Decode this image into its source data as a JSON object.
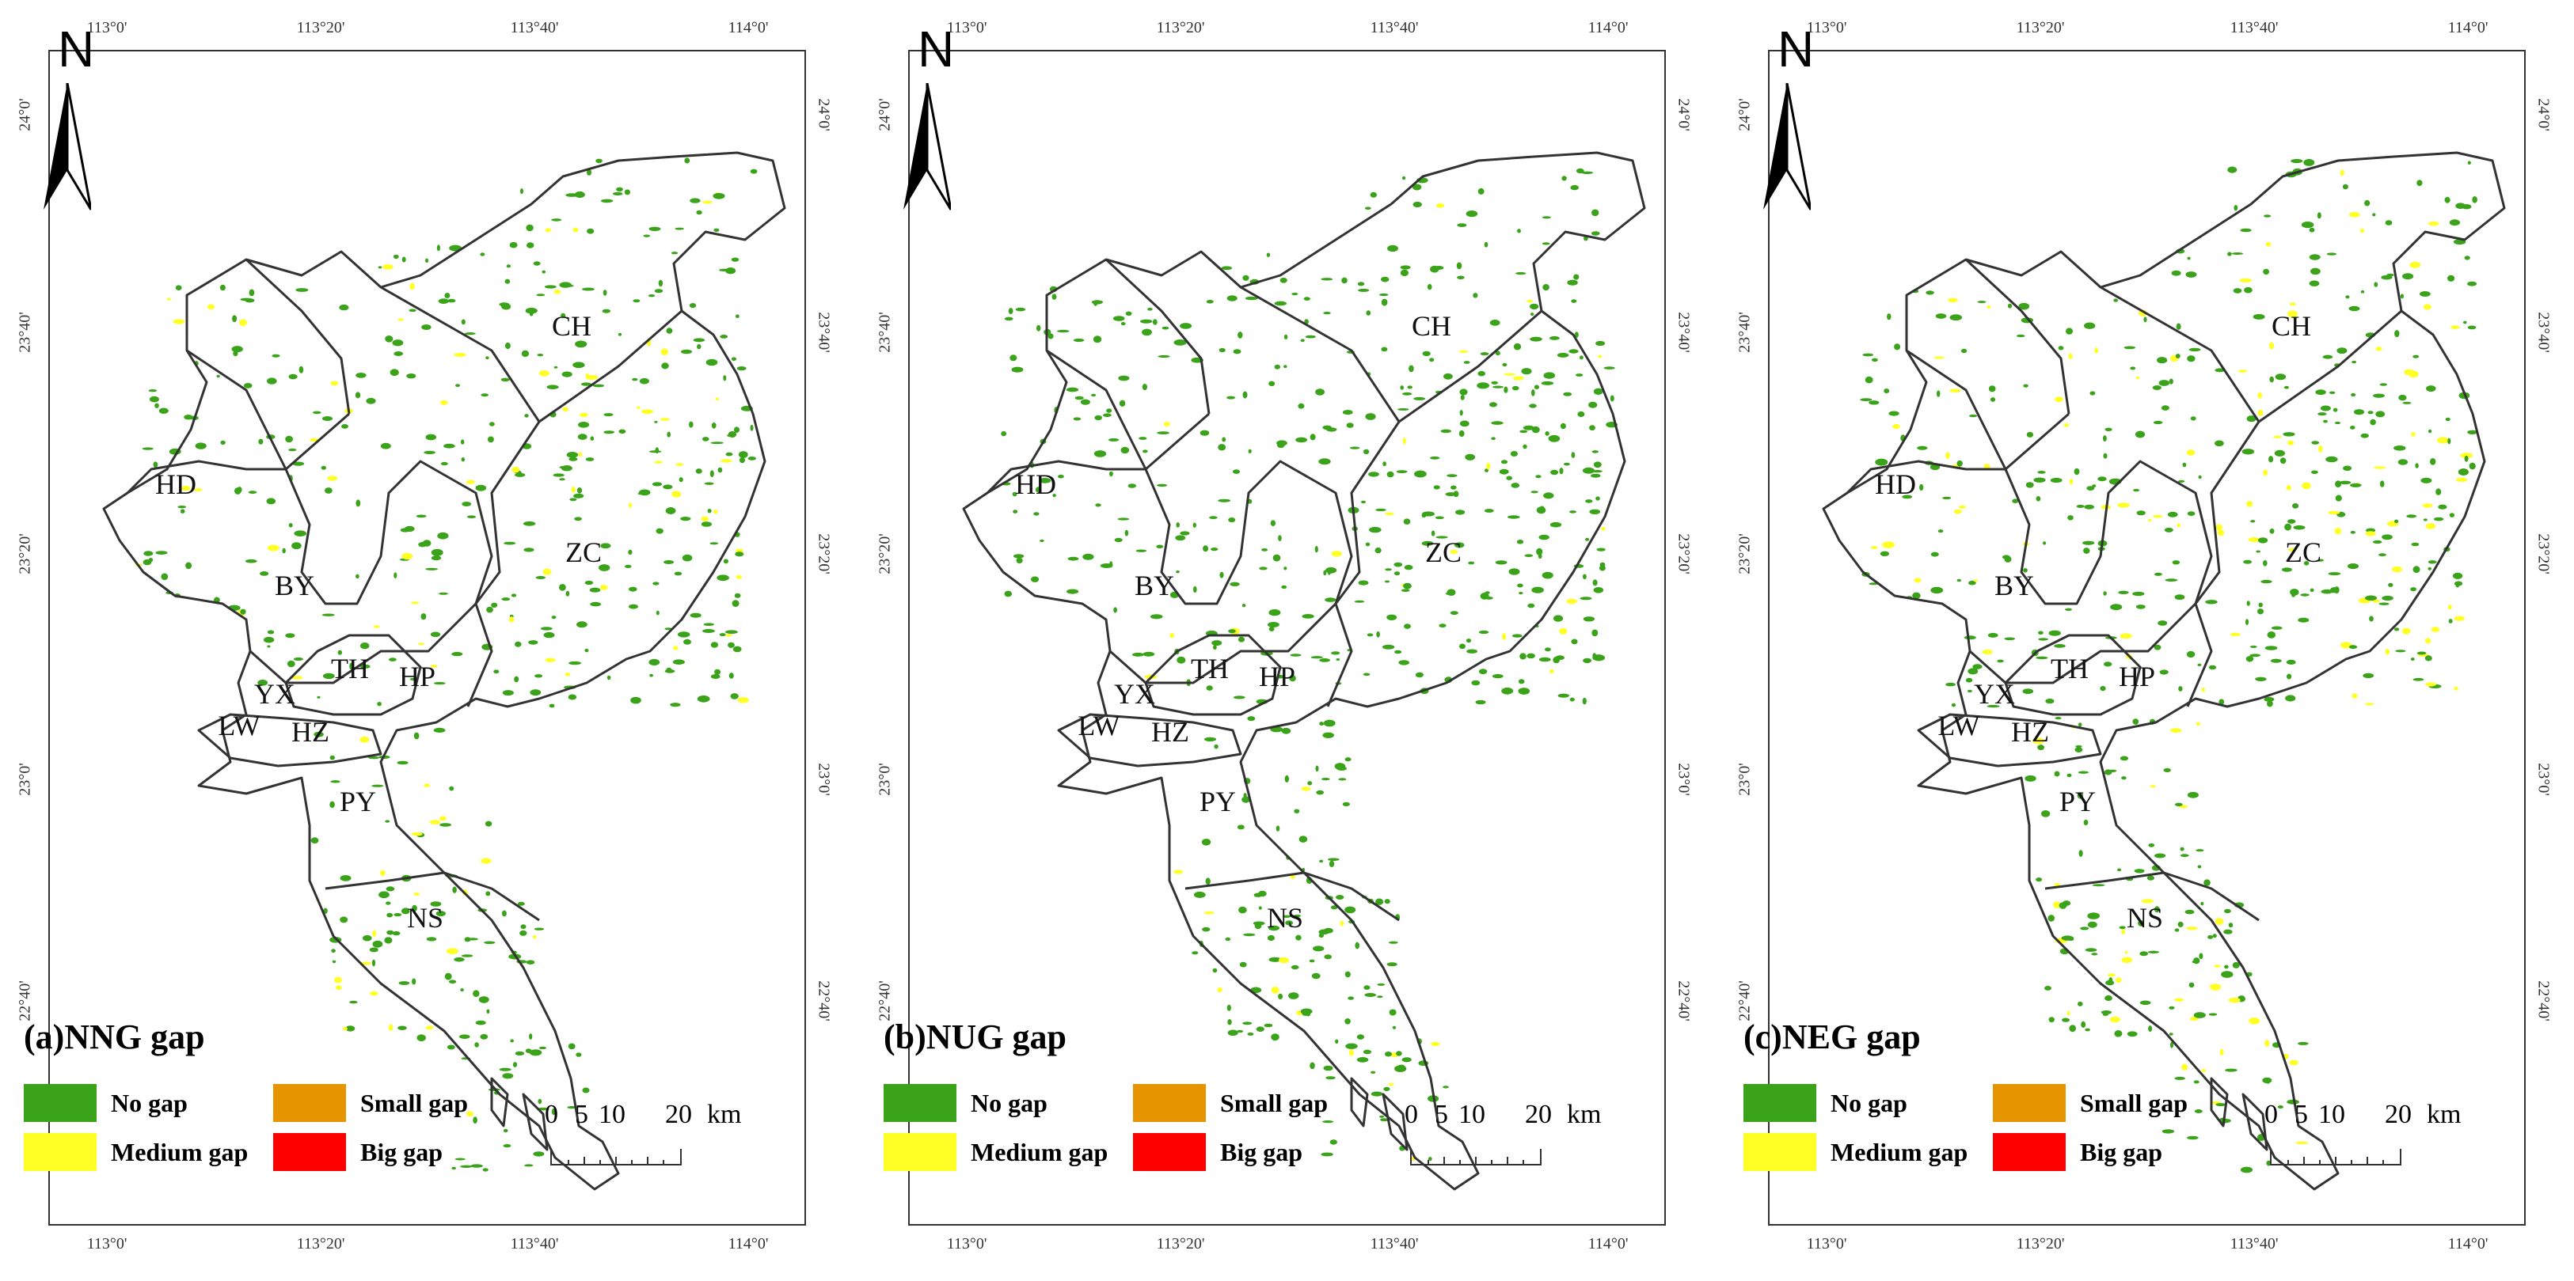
{
  "colors": {
    "no_gap": "#3aa319",
    "medium_gap": "#ffff26",
    "small_gap": "#e69400",
    "big_gap": "#ff0000",
    "boundary": "#333333"
  },
  "axes": {
    "top_ticks": [
      "113°0'",
      "113°20'",
      "113°40'",
      "114°0'"
    ],
    "bottom_ticks": [
      "113°0'",
      "113°20'",
      "113°40'",
      "114°0'"
    ],
    "left_ticks": [
      "24°0'",
      "23°40'",
      "23°20'",
      "23°0'",
      "22°40'"
    ],
    "right_ticks": [
      "24°0'",
      "23°40'",
      "23°20'",
      "23°0'",
      "22°40'"
    ]
  },
  "north_label": "N",
  "districts": [
    "CH",
    "HD",
    "ZC",
    "BY",
    "TH",
    "HP",
    "YX",
    "LW",
    "HZ",
    "PY",
    "NS"
  ],
  "panels": [
    {
      "label": "(a)",
      "name": "NNG gap"
    },
    {
      "label": "(b)",
      "name": "NUG gap"
    },
    {
      "label": "(c)",
      "name": "NEG gap"
    }
  ],
  "legend": {
    "no_gap": "No gap",
    "small_gap": "Small gap",
    "medium_gap": "Medium gap",
    "big_gap": "Big gap"
  },
  "scalebar": {
    "values": [
      "0",
      "5",
      "10",
      "20"
    ],
    "unit": "km"
  }
}
